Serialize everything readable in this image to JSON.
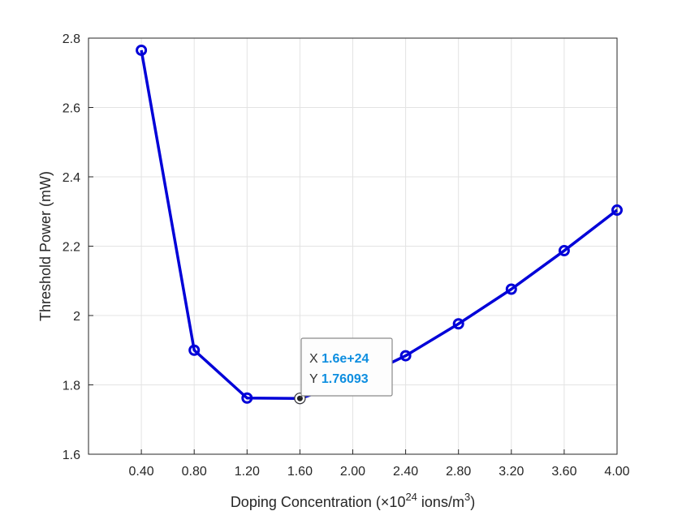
{
  "chart_data": {
    "type": "line",
    "x": [
      0.4,
      0.8,
      1.2,
      1.6,
      2.0,
      2.4,
      2.8,
      3.2,
      3.6,
      4.0
    ],
    "series": [
      {
        "values": [
          2.765,
          1.9,
          1.762,
          1.76093,
          1.81,
          1.884,
          1.976,
          2.076,
          2.187,
          2.304
        ],
        "color": "#0000d8",
        "marker": "circle"
      }
    ],
    "xticks": [
      "0.40",
      "0.80",
      "1.20",
      "1.60",
      "2.00",
      "2.40",
      "2.80",
      "3.20",
      "3.60",
      "4.00"
    ],
    "yticks": [
      "1.6",
      "1.8",
      "2",
      "2.2",
      "2.4",
      "2.6",
      "2.8"
    ],
    "xlim": [
      0.0,
      4.0
    ],
    "ylim": [
      1.6,
      2.8
    ],
    "xlabel": {
      "prefix": "Doping Concentration (×10",
      "exp": "24",
      "middle": " ions/m",
      "exp2": "3",
      "suffix": ")"
    },
    "ylabel": "Threshold Power (mW)",
    "grid": true,
    "datatip": {
      "index": 3,
      "x_label": "X",
      "x_value": "1.6e+24",
      "y_label": "Y",
      "y_value": "1.76093",
      "value_color": "#0d8ee0"
    }
  }
}
